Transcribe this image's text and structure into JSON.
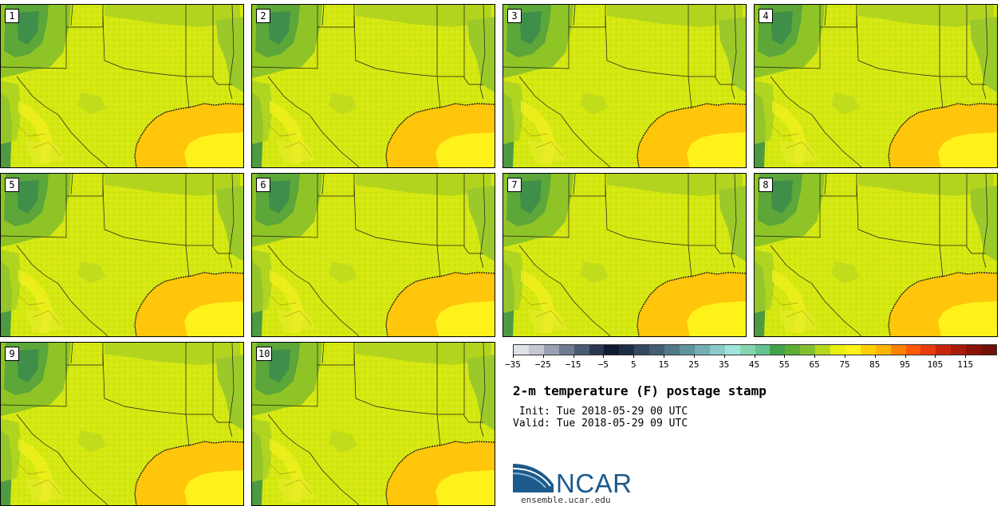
{
  "members": [
    "1",
    "2",
    "3",
    "4",
    "5",
    "6",
    "7",
    "8",
    "9",
    "10"
  ],
  "colorbar": {
    "colors": [
      "#e1e3ea",
      "#c4c7d2",
      "#9ba0b1",
      "#707a90",
      "#4b5a73",
      "#2a3750",
      "#0f1c33",
      "#1e2c45",
      "#34485f",
      "#445e74",
      "#517a89",
      "#5f939d",
      "#73aeb3",
      "#88cbc9",
      "#9fe5dc",
      "#84d5b0",
      "#66c392",
      "#43a34d",
      "#5eae34",
      "#83c02e",
      "#b6d91f",
      "#e7ee10",
      "#fff21a",
      "#ffd000",
      "#ffb400",
      "#ff8200",
      "#ff5a00",
      "#e83a0d",
      "#c6270c",
      "#a81a0c",
      "#8c1207",
      "#6f1106"
    ],
    "tick_labels": [
      "−35",
      "−25",
      "−15",
      "−5",
      "5",
      "15",
      "25",
      "35",
      "45",
      "55",
      "65",
      "75",
      "85",
      "95",
      "105",
      "115"
    ]
  },
  "title": "2-m temperature (F) postage stamp",
  "init_label": " Init: Tue 2018-05-29 00 UTC",
  "valid_label": "Valid: Tue 2018-05-29 09 UTC",
  "logo": {
    "name": "NCAR",
    "url": "ensemble.ucar.edu"
  }
}
